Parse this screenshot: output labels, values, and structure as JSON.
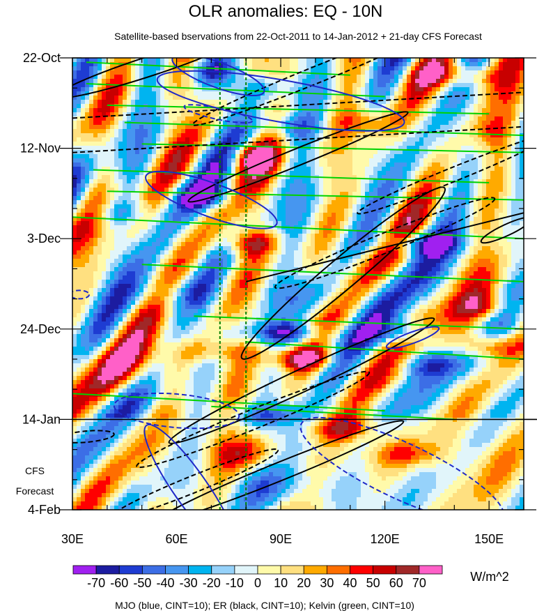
{
  "chart_data": {
    "type": "heatmap",
    "title": "OLR anomalies: EQ - 10N",
    "subtitle": "Satellite-based bservations from 22-Oct-2011 to 14-Jan-2012 + 21-day CFS Forecast",
    "xlabel": "",
    "ylabel": "",
    "x_range": [
      30,
      160
    ],
    "x_ticks": [
      {
        "value": 30,
        "label": "30E"
      },
      {
        "value": 60,
        "label": "60E"
      },
      {
        "value": 90,
        "label": "90E"
      },
      {
        "value": 120,
        "label": "120E"
      },
      {
        "value": 150,
        "label": "150E"
      }
    ],
    "y_range_days": [
      0,
      105
    ],
    "y_ticks": [
      {
        "day": 0,
        "label": "22-Oct"
      },
      {
        "day": 21,
        "label": "12-Nov"
      },
      {
        "day": 42,
        "label": "3-Dec"
      },
      {
        "day": 63,
        "label": "24-Dec"
      },
      {
        "day": 84,
        "label": "14-Jan"
      },
      {
        "day": 105,
        "label": "4-Feb"
      }
    ],
    "forecast_start_day": 84,
    "forecast_label_lines": [
      "CFS",
      "Forecast"
    ],
    "reference_longitudes": [
      72.5,
      80
    ],
    "colorbar": {
      "unit": "W/m^2",
      "levels": [
        -70,
        -60,
        -50,
        -40,
        -30,
        -20,
        -10,
        0,
        10,
        20,
        30,
        40,
        50,
        60,
        70
      ],
      "labels": [
        "-70",
        "-60",
        "-50",
        "-40",
        "-30",
        "-20",
        "-10",
        "0",
        "10",
        "20",
        "30",
        "40",
        "50",
        "60",
        "70"
      ],
      "colors": [
        "#a020f0",
        "#1c1ca0",
        "#1e3cd2",
        "#3c6ee6",
        "#4696f0",
        "#00b4f0",
        "#96d2fa",
        "#e1f5fa",
        "#fffaaa",
        "#ffe080",
        "#ffaa00",
        "#ff6e00",
        "#ff0000",
        "#c80000",
        "#a02828",
        "#ff60c8"
      ]
    },
    "footnote": "MJO (blue, CINT=10); ER (black, CINT=10); Kelvin (green, CINT=10)",
    "contour_colors": {
      "mjo": "#1e28c8",
      "er": "#000000",
      "kelvin": "#00d200",
      "reference": "#008000"
    }
  }
}
